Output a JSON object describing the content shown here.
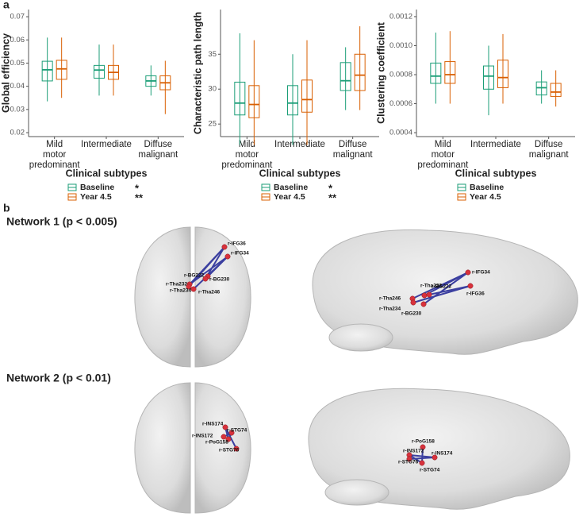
{
  "panel_labels": [
    "a",
    "b"
  ],
  "chart_data": [
    {
      "type": "box",
      "ylabel": "Global efficiency",
      "xlabel": "Clinical subtypes",
      "categories": [
        "Mild\nmotor\npredominant",
        "Intermediate",
        "Diffuse\nmalignant"
      ],
      "ylim": [
        0.0183,
        0.0731
      ],
      "yticks": [
        0.02,
        0.03,
        0.04,
        0.05,
        0.06,
        0.07
      ],
      "series": [
        {
          "name": "Baseline",
          "significance": "*",
          "color": "#1b9e77",
          "whisker_low": [
            0.0335,
            0.036,
            0.036
          ],
          "q1": [
            0.0423,
            0.0435,
            0.04
          ],
          "median": [
            0.0471,
            0.047,
            0.0423
          ],
          "q3": [
            0.0508,
            0.049,
            0.0445
          ],
          "whisker_high": [
            0.061,
            0.058,
            0.049
          ]
        },
        {
          "name": "Year 4.5",
          "significance": "**",
          "color": "#d95f02",
          "whisker_low": [
            0.035,
            0.036,
            0.028
          ],
          "q1": [
            0.043,
            0.043,
            0.0385
          ],
          "median": [
            0.0475,
            0.046,
            0.0415
          ],
          "q3": [
            0.0512,
            0.049,
            0.0445
          ],
          "whisker_high": [
            0.061,
            0.058,
            0.051
          ]
        }
      ]
    },
    {
      "type": "box",
      "ylabel": "Characteristic path length",
      "xlabel": "Clinical subtypes",
      "categories": [
        "Mild\nmotor\npredominant",
        "Intermediate",
        "Diffuse\nmalignant"
      ],
      "ylim": [
        23.2,
        41.4
      ],
      "yticks": [
        25,
        30,
        35
      ],
      "series": [
        {
          "name": "Baseline",
          "significance": "*",
          "color": "#1b9e77",
          "whisker_low": [
            22,
            22,
            27
          ],
          "q1": [
            26.3,
            26.3,
            29.8
          ],
          "median": [
            28,
            28,
            31.2
          ],
          "q3": [
            31,
            30.5,
            33.8
          ],
          "whisker_high": [
            38,
            35,
            36
          ]
        },
        {
          "name": "Year 4.5",
          "significance": "**",
          "color": "#d95f02",
          "whisker_low": [
            22,
            22,
            27
          ],
          "q1": [
            25.9,
            26.7,
            29.8
          ],
          "median": [
            27.8,
            28.5,
            32
          ],
          "q3": [
            30.5,
            31.3,
            35
          ],
          "whisker_high": [
            37,
            37,
            39
          ]
        }
      ]
    },
    {
      "type": "box",
      "ylabel": "Clustering coefficient",
      "xlabel": "Clinical subtypes",
      "categories": [
        "Mild\nmotor\npredominant",
        "Intermediate",
        "Diffuse\nmalignant"
      ],
      "ylim": [
        0.000373,
        0.001249
      ],
      "yticks": [
        0.0004,
        0.0006,
        0.0008,
        {
          "value": 0.001,
          "label": "0.0010"
        },
        0.0012
      ],
      "series": [
        {
          "name": "Baseline",
          "color": "#1b9e77",
          "whisker_low": [
            0.0006,
            0.00052,
            0.0006
          ],
          "q1": [
            0.00074,
            0.0007,
            0.00066
          ],
          "median": [
            0.00079,
            0.00079,
            0.00071
          ],
          "q3": [
            0.00088,
            0.00086,
            0.00075
          ],
          "whisker_high": [
            0.00109,
            0.001,
            0.00083
          ]
        },
        {
          "name": "Year 4.5",
          "color": "#d95f02",
          "whisker_low": [
            0.0006,
            0.0006,
            0.00058
          ],
          "q1": [
            0.00074,
            0.00071,
            0.00065
          ],
          "median": [
            0.0008,
            0.00078,
            0.00068
          ],
          "q3": [
            0.00089,
            0.0009,
            0.00074
          ],
          "whisker_high": [
            0.0011,
            0.00108,
            0.00083
          ]
        }
      ]
    }
  ],
  "networks": [
    {
      "title": "Network 1 (p < 0.005)",
      "top_nodes": [
        "r-IFG36",
        "r-IFG34",
        "r-BG222",
        "r-BG230",
        "r-Tha232",
        "r-Tha234",
        "r-Tha246"
      ],
      "side_nodes": [
        "r-Tha232",
        "r-BG222",
        "r-IFG34",
        "r-Tha246",
        "r-Tha234",
        "r-BG230",
        "r-IFG36"
      ]
    },
    {
      "title": "Network 2 (p < 0.01)",
      "top_nodes": [
        "r-INS174",
        "r-STG74",
        "r-INS172",
        "r-PoG158",
        "r-STG76"
      ],
      "side_nodes": [
        "r-PoG158",
        "r-INS172",
        "r-INS174",
        "r-STG76",
        "r-STG74"
      ]
    }
  ]
}
